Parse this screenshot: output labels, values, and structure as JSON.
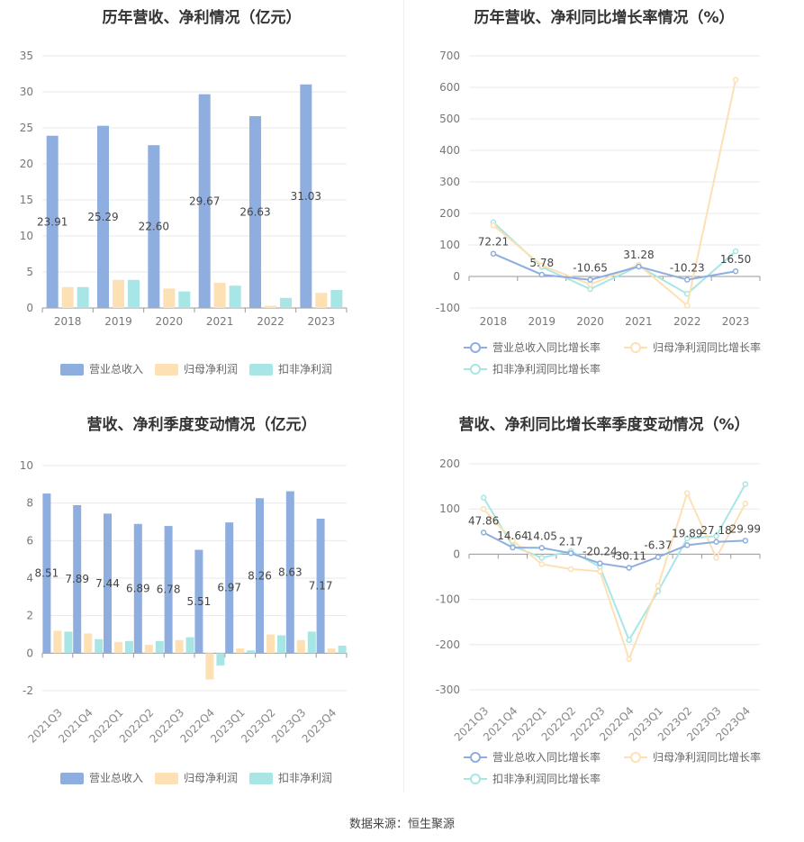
{
  "source": "数据来源：恒生聚源",
  "chart_data": [
    {
      "type": "bar",
      "title": "历年营收、净利情况（亿元）",
      "categories": [
        "2018",
        "2019",
        "2020",
        "2021",
        "2022",
        "2023"
      ],
      "ylim": [
        0,
        35
      ],
      "yticks": [
        "0",
        "5",
        "10",
        "15",
        "20",
        "25",
        "30",
        "35"
      ],
      "grid": true,
      "legend_position": "bottom",
      "series": [
        {
          "name": "营业总收入",
          "color": "#8eaee0",
          "values": [
            23.91,
            25.29,
            22.6,
            29.67,
            26.63,
            31.03
          ],
          "labels": [
            "23.91",
            "25.29",
            "22.60",
            "29.67",
            "26.63",
            "31.03"
          ]
        },
        {
          "name": "归母净利润",
          "color": "#fde0b4",
          "values": [
            2.9,
            3.9,
            2.7,
            3.5,
            0.3,
            2.1
          ]
        },
        {
          "name": "扣非净利润",
          "color": "#a8e6e6",
          "values": [
            2.9,
            3.9,
            2.3,
            3.1,
            1.4,
            2.5
          ]
        }
      ]
    },
    {
      "type": "line",
      "title": "历年营收、净利同比增长率情况（%）",
      "categories": [
        "2018",
        "2019",
        "2020",
        "2021",
        "2022",
        "2023"
      ],
      "ylim": [
        -100,
        700
      ],
      "yticks": [
        "-100",
        "0",
        "100",
        "200",
        "300",
        "400",
        "500",
        "600",
        "700"
      ],
      "grid": true,
      "legend_position": "bottom",
      "series": [
        {
          "name": "营业总收入同比增长率",
          "color": "#8eaee0",
          "values": [
            72.21,
            5.78,
            -10.65,
            31.28,
            -10.23,
            16.5
          ],
          "labels": [
            "72.21",
            "5.78",
            "-10.65",
            "31.28",
            "-10.23",
            "16.50"
          ]
        },
        {
          "name": "归母净利润同比增长率",
          "color": "#fde0b4",
          "values": [
            162,
            35,
            -25,
            37,
            -92,
            624
          ]
        },
        {
          "name": "扣非净利润同比增长率",
          "color": "#a8e6e6",
          "values": [
            172,
            30,
            -40,
            33,
            -55,
            80
          ]
        }
      ]
    },
    {
      "type": "bar",
      "title": "营收、净利季度变动情况（亿元）",
      "categories": [
        "2021Q3",
        "2021Q4",
        "2022Q1",
        "2022Q2",
        "2022Q3",
        "2022Q4",
        "2023Q1",
        "2023Q2",
        "2023Q3",
        "2023Q4"
      ],
      "ylim": [
        -2,
        10
      ],
      "yticks": [
        "-2",
        "0",
        "2",
        "4",
        "6",
        "8",
        "10"
      ],
      "grid": true,
      "legend_position": "bottom",
      "series": [
        {
          "name": "营业总收入",
          "color": "#8eaee0",
          "values": [
            8.51,
            7.89,
            7.44,
            6.89,
            6.78,
            5.51,
            6.97,
            8.26,
            8.63,
            7.17
          ],
          "labels": [
            "8.51",
            "7.89",
            "7.44",
            "6.89",
            "6.78",
            "5.51",
            "6.97",
            "8.26",
            "8.63",
            "7.17"
          ]
        },
        {
          "name": "归母净利润",
          "color": "#fde0b4",
          "values": [
            1.2,
            1.05,
            0.6,
            0.45,
            0.7,
            -1.4,
            0.25,
            1.0,
            0.7,
            0.25
          ]
        },
        {
          "name": "扣非净利润",
          "color": "#a8e6e6",
          "values": [
            1.15,
            0.75,
            0.65,
            0.65,
            0.85,
            -0.65,
            0.15,
            0.95,
            1.15,
            0.4
          ]
        }
      ]
    },
    {
      "type": "line",
      "title": "营收、净利同比增长率季度变动情况（%）",
      "categories": [
        "2021Q3",
        "2021Q4",
        "2022Q1",
        "2022Q2",
        "2022Q3",
        "2022Q4",
        "2023Q1",
        "2023Q2",
        "2023Q3",
        "2023Q4"
      ],
      "ylim": [
        -300,
        200
      ],
      "yticks": [
        "-300",
        "-200",
        "-100",
        "0",
        "100",
        "200"
      ],
      "grid": true,
      "legend_position": "bottom",
      "series": [
        {
          "name": "营业总收入同比增长率",
          "color": "#8eaee0",
          "values": [
            47.86,
            14.64,
            14.05,
            2.17,
            -20.24,
            -30.11,
            -6.37,
            19.89,
            27.18,
            29.99
          ],
          "labels": [
            "47.86",
            "14.64",
            "14.05",
            "2.17",
            "-20.24",
            "-30.11",
            "-6.37",
            "19.89",
            "27.18",
            "29.99"
          ]
        },
        {
          "name": "归母净利润同比增长率",
          "color": "#fde0b4",
          "values": [
            100,
            30,
            -22,
            -33,
            -38,
            -232,
            -70,
            135,
            -8,
            112
          ]
        },
        {
          "name": "扣非净利润同比增长率",
          "color": "#a8e6e6",
          "values": [
            125,
            18,
            -8,
            7,
            -28,
            -190,
            -82,
            35,
            40,
            155
          ]
        }
      ]
    }
  ]
}
